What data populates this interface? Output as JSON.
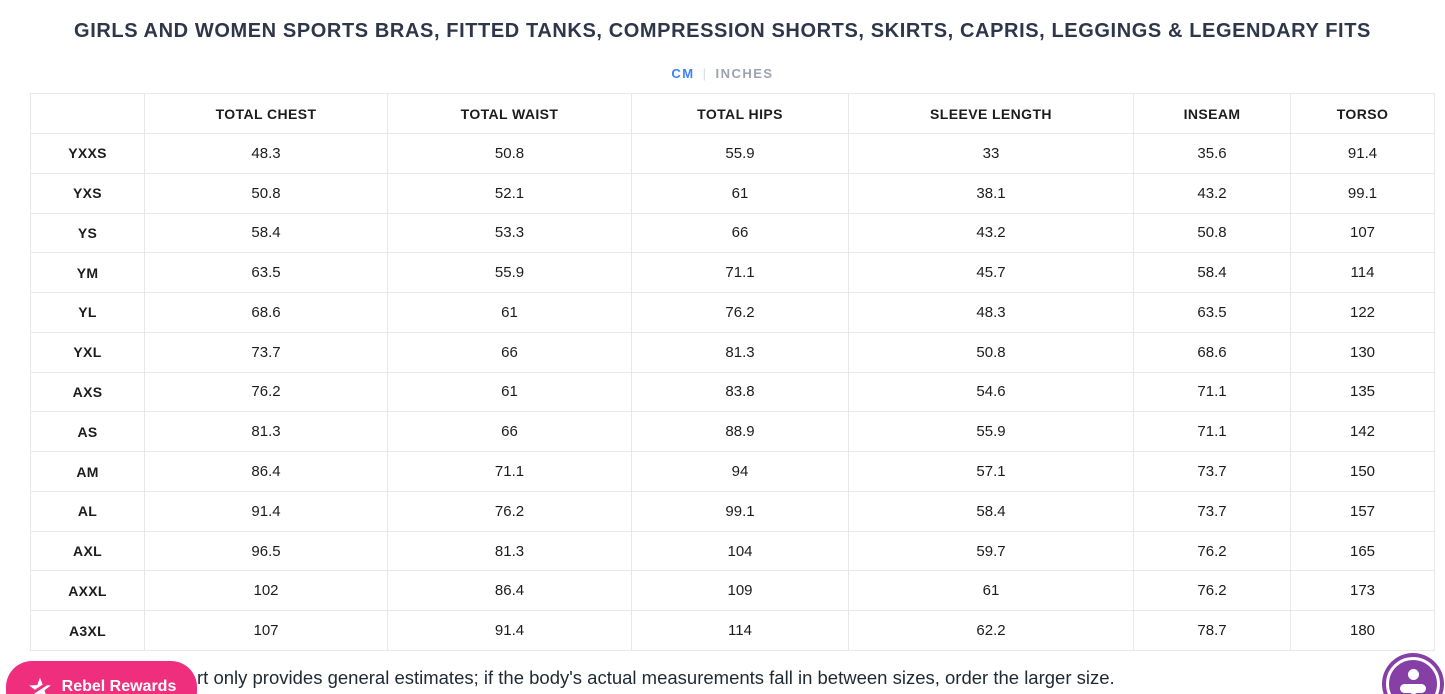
{
  "page": {
    "title": "GIRLS AND WOMEN SPORTS BRAS, FITTED TANKS, COMPRESSION SHORTS, SKIRTS, CAPRIS, LEGGINGS & LEGENDARY FITS",
    "footnote_visible_text": "rt only provides general estimates; if the body's actual measurements fall in between sizes, order the larger size."
  },
  "unit_toggle": {
    "cm_label": "CM",
    "divider": "|",
    "inches_label": "INCHES",
    "active_unit": "CM",
    "active_color": "#3b82f6",
    "inactive_color": "#9ca3af"
  },
  "size_chart": {
    "columns": [
      "",
      "TOTAL CHEST",
      "TOTAL WAIST",
      "TOTAL HIPS",
      "SLEEVE LENGTH",
      "INSEAM",
      "TORSO"
    ],
    "rows": [
      {
        "size": "YXXS",
        "values": [
          "48.3",
          "50.8",
          "55.9",
          "33",
          "35.6",
          "91.4"
        ]
      },
      {
        "size": "YXS",
        "values": [
          "50.8",
          "52.1",
          "61",
          "38.1",
          "43.2",
          "99.1"
        ]
      },
      {
        "size": "YS",
        "values": [
          "58.4",
          "53.3",
          "66",
          "43.2",
          "50.8",
          "107"
        ]
      },
      {
        "size": "YM",
        "values": [
          "63.5",
          "55.9",
          "71.1",
          "45.7",
          "58.4",
          "114"
        ]
      },
      {
        "size": "YL",
        "values": [
          "68.6",
          "61",
          "76.2",
          "48.3",
          "63.5",
          "122"
        ]
      },
      {
        "size": "YXL",
        "values": [
          "73.7",
          "66",
          "81.3",
          "50.8",
          "68.6",
          "130"
        ]
      },
      {
        "size": "AXS",
        "values": [
          "76.2",
          "61",
          "83.8",
          "54.6",
          "71.1",
          "135"
        ]
      },
      {
        "size": "AS",
        "values": [
          "81.3",
          "66",
          "88.9",
          "55.9",
          "71.1",
          "142"
        ]
      },
      {
        "size": "AM",
        "values": [
          "86.4",
          "71.1",
          "94",
          "57.1",
          "73.7",
          "150"
        ]
      },
      {
        "size": "AL",
        "values": [
          "91.4",
          "76.2",
          "99.1",
          "58.4",
          "73.7",
          "157"
        ]
      },
      {
        "size": "AXL",
        "values": [
          "96.5",
          "81.3",
          "104",
          "59.7",
          "76.2",
          "165"
        ]
      },
      {
        "size": "AXXL",
        "values": [
          "102",
          "86.4",
          "109",
          "61",
          "76.2",
          "173"
        ]
      },
      {
        "size": "A3XL",
        "values": [
          "107",
          "91.4",
          "114",
          "62.2",
          "78.7",
          "180"
        ]
      }
    ]
  },
  "widgets": {
    "rewards_badge": {
      "label": "Rebel Rewards",
      "background_color": "#ef2f7e",
      "icon": "star-icon"
    },
    "accessibility_button": {
      "background_color": "#8640a5",
      "icon": "accessibility-person-icon"
    }
  }
}
